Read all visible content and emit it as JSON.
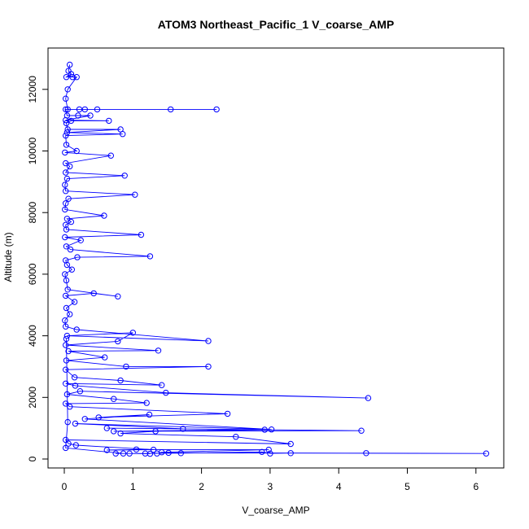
{
  "chart_data": {
    "type": "scatter",
    "title": "ATOM3 Northeast_Pacific_1 V_coarse_AMP",
    "xlabel": "V_coarse_AMP",
    "ylabel": "Altitude (m)",
    "xlim": [
      0,
      6.2
    ],
    "ylim": [
      0,
      12800
    ],
    "x_ticks": [
      "0",
      "1",
      "2",
      "3",
      "4",
      "5",
      "6"
    ],
    "y_ticks": [
      "0",
      "2000",
      "4000",
      "6000",
      "8000",
      "10000",
      "12000"
    ],
    "grid": false,
    "legend": "none",
    "series_color": "#0000ff",
    "marker": "open-circle",
    "connected": true,
    "points": [
      [
        0.08,
        12800
      ],
      [
        0.06,
        12600
      ],
      [
        0.1,
        12500
      ],
      [
        0.03,
        12400
      ],
      [
        0.12,
        12400
      ],
      [
        0.18,
        12400
      ],
      [
        0.05,
        12000
      ],
      [
        0.02,
        11700
      ],
      [
        0.05,
        11350
      ],
      [
        0.22,
        11350
      ],
      [
        0.48,
        11350
      ],
      [
        1.55,
        11350
      ],
      [
        2.22,
        11350
      ],
      [
        0.3,
        11350
      ],
      [
        0.02,
        11350
      ],
      [
        0.04,
        11150
      ],
      [
        0.2,
        11150
      ],
      [
        0.38,
        11150
      ],
      [
        0.02,
        11000
      ],
      [
        0.65,
        10980
      ],
      [
        0.1,
        10980
      ],
      [
        0.03,
        10900
      ],
      [
        0.05,
        10700
      ],
      [
        0.82,
        10700
      ],
      [
        0.04,
        10600
      ],
      [
        0.85,
        10550
      ],
      [
        0.02,
        10500
      ],
      [
        0.03,
        10200
      ],
      [
        0.18,
        10000
      ],
      [
        0.01,
        9950
      ],
      [
        0.68,
        9850
      ],
      [
        0.02,
        9600
      ],
      [
        0.08,
        9500
      ],
      [
        0.02,
        9300
      ],
      [
        0.88,
        9200
      ],
      [
        0.04,
        9100
      ],
      [
        0.01,
        8900
      ],
      [
        0.02,
        8700
      ],
      [
        1.03,
        8580
      ],
      [
        0.06,
        8450
      ],
      [
        0.02,
        8300
      ],
      [
        0.01,
        8100
      ],
      [
        0.58,
        7900
      ],
      [
        0.04,
        7800
      ],
      [
        0.1,
        7700
      ],
      [
        0.02,
        7600
      ],
      [
        0.03,
        7450
      ],
      [
        1.12,
        7280
      ],
      [
        0.01,
        7200
      ],
      [
        0.24,
        7100
      ],
      [
        0.03,
        6900
      ],
      [
        0.09,
        6800
      ],
      [
        1.25,
        6580
      ],
      [
        0.19,
        6550
      ],
      [
        0.02,
        6450
      ],
      [
        0.04,
        6300
      ],
      [
        0.11,
        6150
      ],
      [
        0.01,
        6000
      ],
      [
        0.03,
        5800
      ],
      [
        0.05,
        5500
      ],
      [
        0.78,
        5280
      ],
      [
        0.43,
        5380
      ],
      [
        0.02,
        5300
      ],
      [
        0.15,
        5100
      ],
      [
        0.03,
        4900
      ],
      [
        0.08,
        4700
      ],
      [
        0.01,
        4500
      ],
      [
        0.02,
        4300
      ],
      [
        0.18,
        4200
      ],
      [
        2.1,
        3830
      ],
      [
        0.04,
        4000
      ],
      [
        1.0,
        4100
      ],
      [
        0.78,
        3820
      ],
      [
        0.02,
        3700
      ],
      [
        1.37,
        3520
      ],
      [
        0.06,
        3500
      ],
      [
        0.59,
        3300
      ],
      [
        0.03,
        3200
      ],
      [
        0.9,
        3000
      ],
      [
        2.1,
        3000
      ],
      [
        0.02,
        2900
      ],
      [
        0.15,
        2650
      ],
      [
        0.82,
        2550
      ],
      [
        1.42,
        2400
      ],
      [
        0.02,
        2450
      ],
      [
        0.16,
        2380
      ],
      [
        1.48,
        2150
      ],
      [
        4.43,
        1980
      ],
      [
        0.23,
        2200
      ],
      [
        0.04,
        2100
      ],
      [
        0.72,
        1950
      ],
      [
        1.2,
        1820
      ],
      [
        0.02,
        1800
      ],
      [
        0.08,
        1700
      ],
      [
        2.38,
        1470
      ],
      [
        0.5,
        1350
      ],
      [
        1.24,
        1440
      ],
      [
        0.3,
        1300
      ],
      [
        3.02,
        960
      ],
      [
        0.16,
        1150
      ],
      [
        1.73,
        980
      ],
      [
        0.62,
        1000
      ],
      [
        4.33,
        920
      ],
      [
        0.72,
        900
      ],
      [
        2.92,
        950
      ],
      [
        1.33,
        900
      ],
      [
        0.82,
        830
      ],
      [
        2.5,
        720
      ],
      [
        3.3,
        490
      ],
      [
        0.02,
        620
      ],
      [
        0.06,
        500
      ],
      [
        0.17,
        450
      ],
      [
        1.3,
        300
      ],
      [
        0.62,
        290
      ],
      [
        1.05,
        310
      ],
      [
        2.98,
        300
      ],
      [
        1.42,
        220
      ],
      [
        1.35,
        180
      ],
      [
        0.75,
        180
      ],
      [
        1.7,
        190
      ],
      [
        2.88,
        230
      ],
      [
        3.0,
        180
      ],
      [
        3.3,
        190
      ],
      [
        4.4,
        190
      ],
      [
        6.15,
        180
      ],
      [
        1.52,
        200
      ],
      [
        1.18,
        180
      ],
      [
        1.25,
        170
      ],
      [
        0.95,
        180
      ],
      [
        0.86,
        180
      ],
      [
        0.02,
        360
      ],
      [
        0.05,
        1200
      ],
      [
        0.03,
        3900
      ]
    ]
  }
}
